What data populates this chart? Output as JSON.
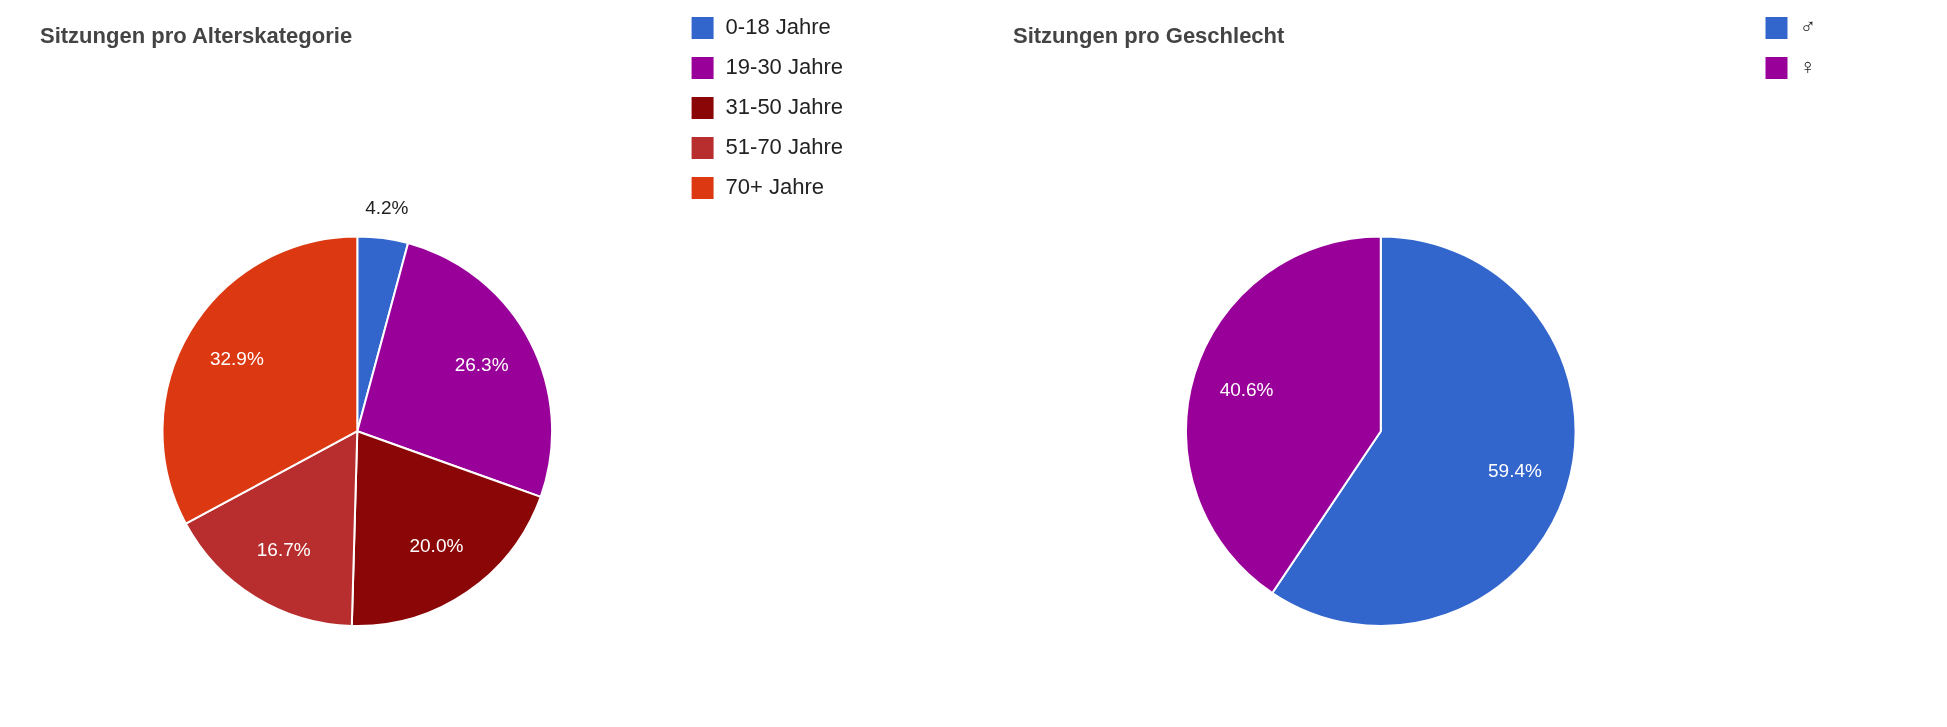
{
  "chart_data": [
    {
      "type": "pie",
      "title": "Sitzungen pro Alterskategorie",
      "categories": [
        "0-18 Jahre",
        "19-30 Jahre",
        "31-50 Jahre",
        "51-70 Jahre",
        "70+ Jahre"
      ],
      "values": [
        4.2,
        26.3,
        20.0,
        16.7,
        32.9
      ],
      "value_labels": [
        "4.2%",
        "26.3%",
        "20.0%",
        "16.7%",
        "32.9%"
      ],
      "colors": [
        "#3366cc",
        "#990099",
        "#8b0707",
        "#b82e2e",
        "#dc3912"
      ],
      "legend": "right"
    },
    {
      "type": "pie",
      "title": "Sitzungen pro Geschlecht",
      "categories": [
        "♂",
        "♀"
      ],
      "values": [
        59.4,
        40.6
      ],
      "value_labels": [
        "59.4%",
        "40.6%"
      ],
      "colors": [
        "#3366cc",
        "#990099"
      ],
      "legend": "right"
    }
  ]
}
